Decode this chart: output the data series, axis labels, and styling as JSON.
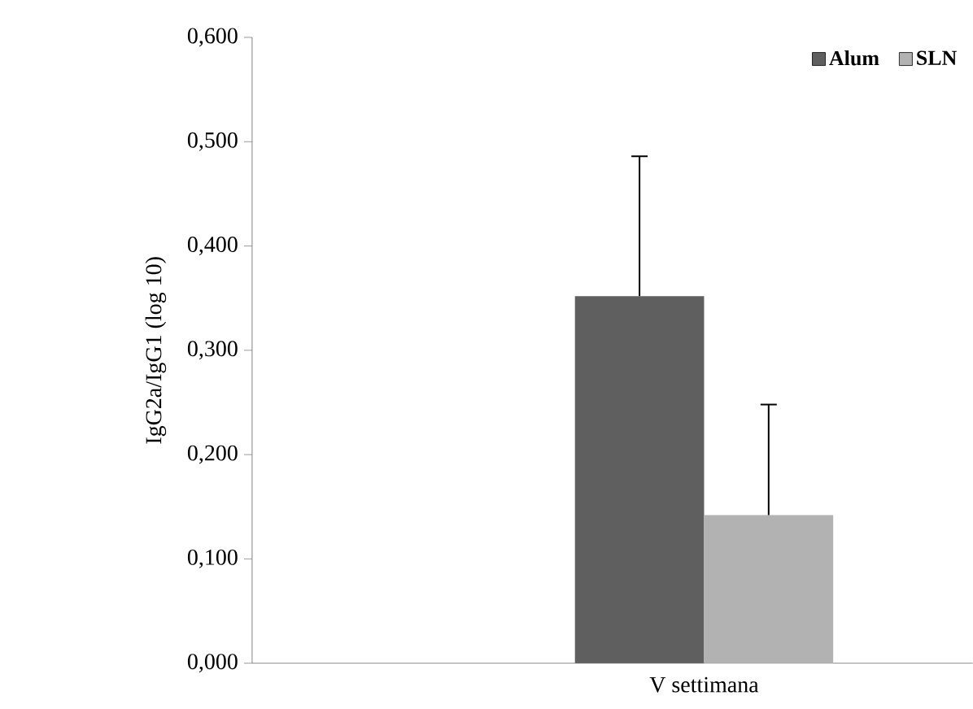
{
  "chart_data": {
    "type": "bar",
    "ylabel": "IgG2a/IgG1 (log 10)",
    "categories": [
      "V settimana"
    ],
    "series": [
      {
        "name": "Alum",
        "color": "#5f5f5f",
        "values": [
          0.352
        ],
        "errors": [
          [
            0.352,
            0.486
          ]
        ]
      },
      {
        "name": "SLN",
        "color": "#b2b2b2",
        "values": [
          0.142
        ],
        "errors": [
          [
            0.142,
            0.248
          ]
        ]
      }
    ],
    "ylim": [
      0,
      0.6
    ],
    "yticks": [
      {
        "value": 0,
        "label": "0,000"
      },
      {
        "value": 0.1,
        "label": "0,100"
      },
      {
        "value": 0.2,
        "label": "0,200"
      },
      {
        "value": 0.3,
        "label": "0,300"
      },
      {
        "value": 0.4,
        "label": "0,400"
      },
      {
        "value": 0.5,
        "label": "0,500"
      },
      {
        "value": 0.6,
        "label": "0,600"
      }
    ],
    "legend": "top right",
    "grid": false
  }
}
